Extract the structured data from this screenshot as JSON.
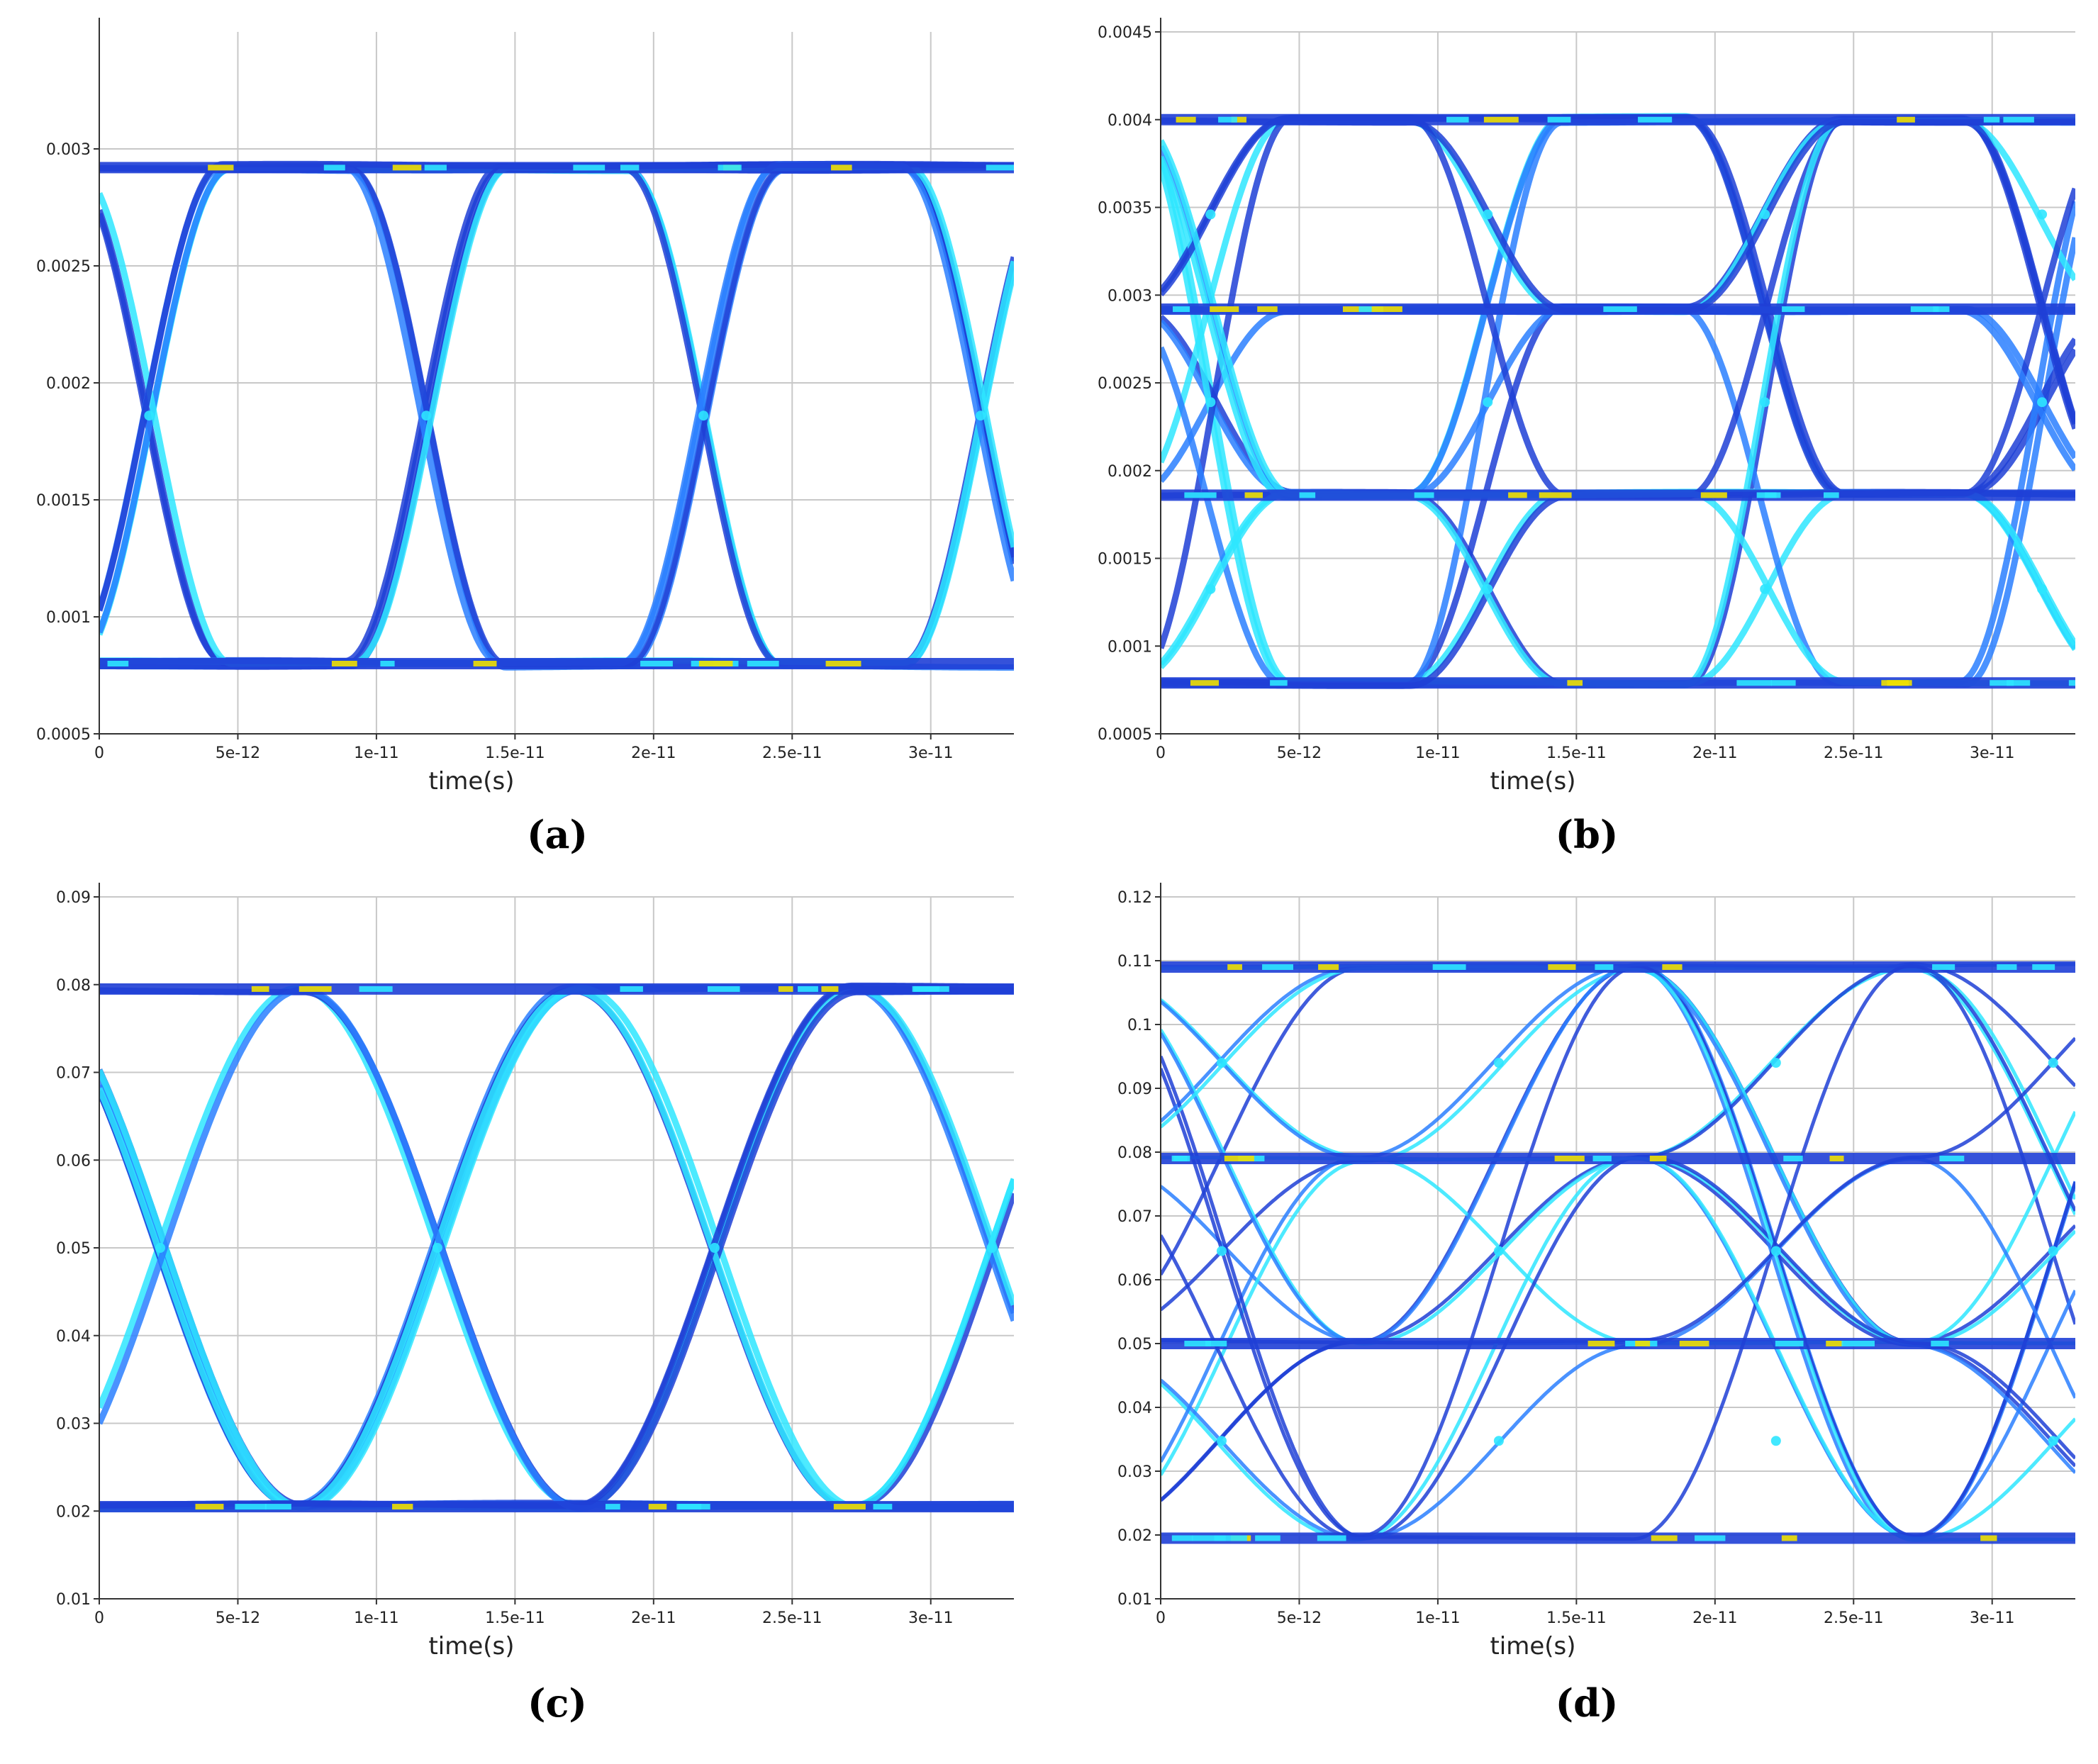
{
  "chart_data": [
    {
      "type": "eye-diagram",
      "panel_label": "(a)",
      "xlabel": "time(s)",
      "ylabel": "",
      "xlim": [
        0,
        3.3e-11
      ],
      "ylim": [
        0.0005,
        0.0035
      ],
      "xticks": [
        "0",
        "5e-12",
        "1e-11",
        "1.5e-11",
        "2e-11",
        "2.5e-11",
        "3e-11"
      ],
      "xtick_values": [
        0,
        5e-12,
        1e-11,
        1.5e-11,
        2e-11,
        2.5e-11,
        3e-11
      ],
      "yticks": [
        "0.0005",
        "0.001",
        "0.0015",
        "0.002",
        "0.0025",
        "0.003"
      ],
      "ytick_values": [
        0.0005,
        0.001,
        0.0015,
        0.002,
        0.0025,
        0.003
      ],
      "levels": [
        0.0008,
        0.00292
      ],
      "symbol_period": 1e-11,
      "crossing_times": [
        1.8e-12,
        1.18e-11,
        2.18e-11,
        3.18e-11
      ],
      "grid": true,
      "colormap": [
        "#0a1a8c",
        "#1f3fd6",
        "#2a7fff",
        "#2ee6ff",
        "#f0e000",
        "#ff2000"
      ]
    },
    {
      "type": "eye-diagram",
      "panel_label": "(b)",
      "xlabel": "time(s)",
      "ylabel": "",
      "xlim": [
        0,
        3.3e-11
      ],
      "ylim": [
        0.0005,
        0.0045
      ],
      "xticks": [
        "0",
        "5e-12",
        "1e-11",
        "1.5e-11",
        "2e-11",
        "2.5e-11",
        "3e-11"
      ],
      "xtick_values": [
        0,
        5e-12,
        1e-11,
        1.5e-11,
        2e-11,
        2.5e-11,
        3e-11
      ],
      "yticks": [
        "0.0005",
        "0.001",
        "0.0015",
        "0.002",
        "0.0025",
        "0.003",
        "0.0035",
        "0.004",
        "0.0045"
      ],
      "ytick_values": [
        0.0005,
        0.001,
        0.0015,
        0.002,
        0.0025,
        0.003,
        0.0035,
        0.004,
        0.0045
      ],
      "levels": [
        0.00079,
        0.00186,
        0.00292,
        0.004
      ],
      "symbol_period": 1e-11,
      "crossing_times": [
        1.8e-12,
        1.18e-11,
        2.18e-11,
        3.18e-11
      ],
      "grid": true,
      "colormap": [
        "#0a1a8c",
        "#1f3fd6",
        "#2a7fff",
        "#2ee6ff",
        "#f0e000",
        "#ff2000"
      ]
    },
    {
      "type": "eye-diagram",
      "panel_label": "(c)",
      "xlabel": "time(s)",
      "ylabel": "",
      "xlim": [
        0,
        3.3e-11
      ],
      "ylim": [
        0.01,
        0.09
      ],
      "xticks": [
        "0",
        "5e-12",
        "1e-11",
        "1.5e-11",
        "2e-11",
        "2.5e-11",
        "3e-11"
      ],
      "xtick_values": [
        0,
        5e-12,
        1e-11,
        1.5e-11,
        2e-11,
        2.5e-11,
        3e-11
      ],
      "yticks": [
        "0.01",
        "0.02",
        "0.03",
        "0.04",
        "0.05",
        "0.06",
        "0.07",
        "0.08",
        "0.09"
      ],
      "ytick_values": [
        0.01,
        0.02,
        0.03,
        0.04,
        0.05,
        0.06,
        0.07,
        0.08,
        0.09
      ],
      "levels": [
        0.0205,
        0.0795
      ],
      "symbol_period": 1e-11,
      "crossing_times": [
        2.2e-12,
        1.22e-11,
        2.22e-11,
        3.22e-11
      ],
      "grid": true,
      "colormap": [
        "#0a1a8c",
        "#1f3fd6",
        "#2a7fff",
        "#2ee6ff",
        "#f0e000",
        "#ff2000"
      ]
    },
    {
      "type": "eye-diagram",
      "panel_label": "(d)",
      "xlabel": "time(s)",
      "ylabel": "",
      "xlim": [
        0,
        3.3e-11
      ],
      "ylim": [
        0.01,
        0.12
      ],
      "xticks": [
        "0",
        "5e-12",
        "1e-11",
        "1.5e-11",
        "2e-11",
        "2.5e-11",
        "3e-11"
      ],
      "xtick_values": [
        0,
        5e-12,
        1e-11,
        1.5e-11,
        2e-11,
        2.5e-11,
        3e-11
      ],
      "yticks": [
        "0.01",
        "0.02",
        "0.03",
        "0.04",
        "0.05",
        "0.06",
        "0.07",
        "0.08",
        "0.09",
        "0.1",
        "0.11",
        "0.12"
      ],
      "ytick_values": [
        0.01,
        0.02,
        0.03,
        0.04,
        0.05,
        0.06,
        0.07,
        0.08,
        0.09,
        0.1,
        0.11,
        0.12
      ],
      "levels": [
        0.0195,
        0.05,
        0.079,
        0.109
      ],
      "symbol_period": 1e-11,
      "crossing_times": [
        2.2e-12,
        1.22e-11,
        2.22e-11,
        3.22e-11
      ],
      "grid": true,
      "colormap": [
        "#0a1a8c",
        "#1f3fd6",
        "#2a7fff",
        "#2ee6ff",
        "#f0e000",
        "#ff2000"
      ]
    }
  ]
}
